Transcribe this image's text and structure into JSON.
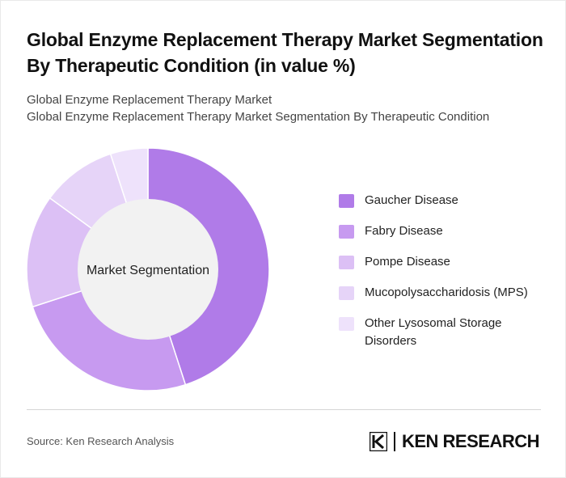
{
  "header": {
    "title": "Global Enzyme Replacement Therapy Market Segmentation By Therapeutic Condition (in value %)",
    "subtitle_line1": "Global Enzyme Replacement Therapy Market",
    "subtitle_line2": "Global Enzyme Replacement Therapy Market Segmentation By Therapeutic Condition"
  },
  "chart": {
    "center_label": "Market Segmentation"
  },
  "chart_data": {
    "type": "pie",
    "title": "Global Enzyme Replacement Therapy Market Segmentation By Therapeutic Condition (in value %)",
    "subtitle": "Global Enzyme Replacement Therapy Market Segmentation By Therapeutic Condition",
    "categories": [
      "Gaucher Disease",
      "Fabry Disease",
      "Pompe Disease",
      "Mucopolysaccharidosis (MPS)",
      "Other Lysosomal Storage Disorders"
    ],
    "values": [
      45,
      25,
      15,
      10,
      5
    ],
    "colors": [
      "#b07be8",
      "#c79af0",
      "#dcc0f5",
      "#e6d4f8",
      "#eee2fb"
    ],
    "hole_color": "#f2f2f2",
    "legend_position": "right"
  },
  "footer": {
    "source": "Source: Ken Research Analysis",
    "brand_text": "KEN RESEARCH",
    "brand_logo_icon": "ken-research-logo-icon"
  }
}
